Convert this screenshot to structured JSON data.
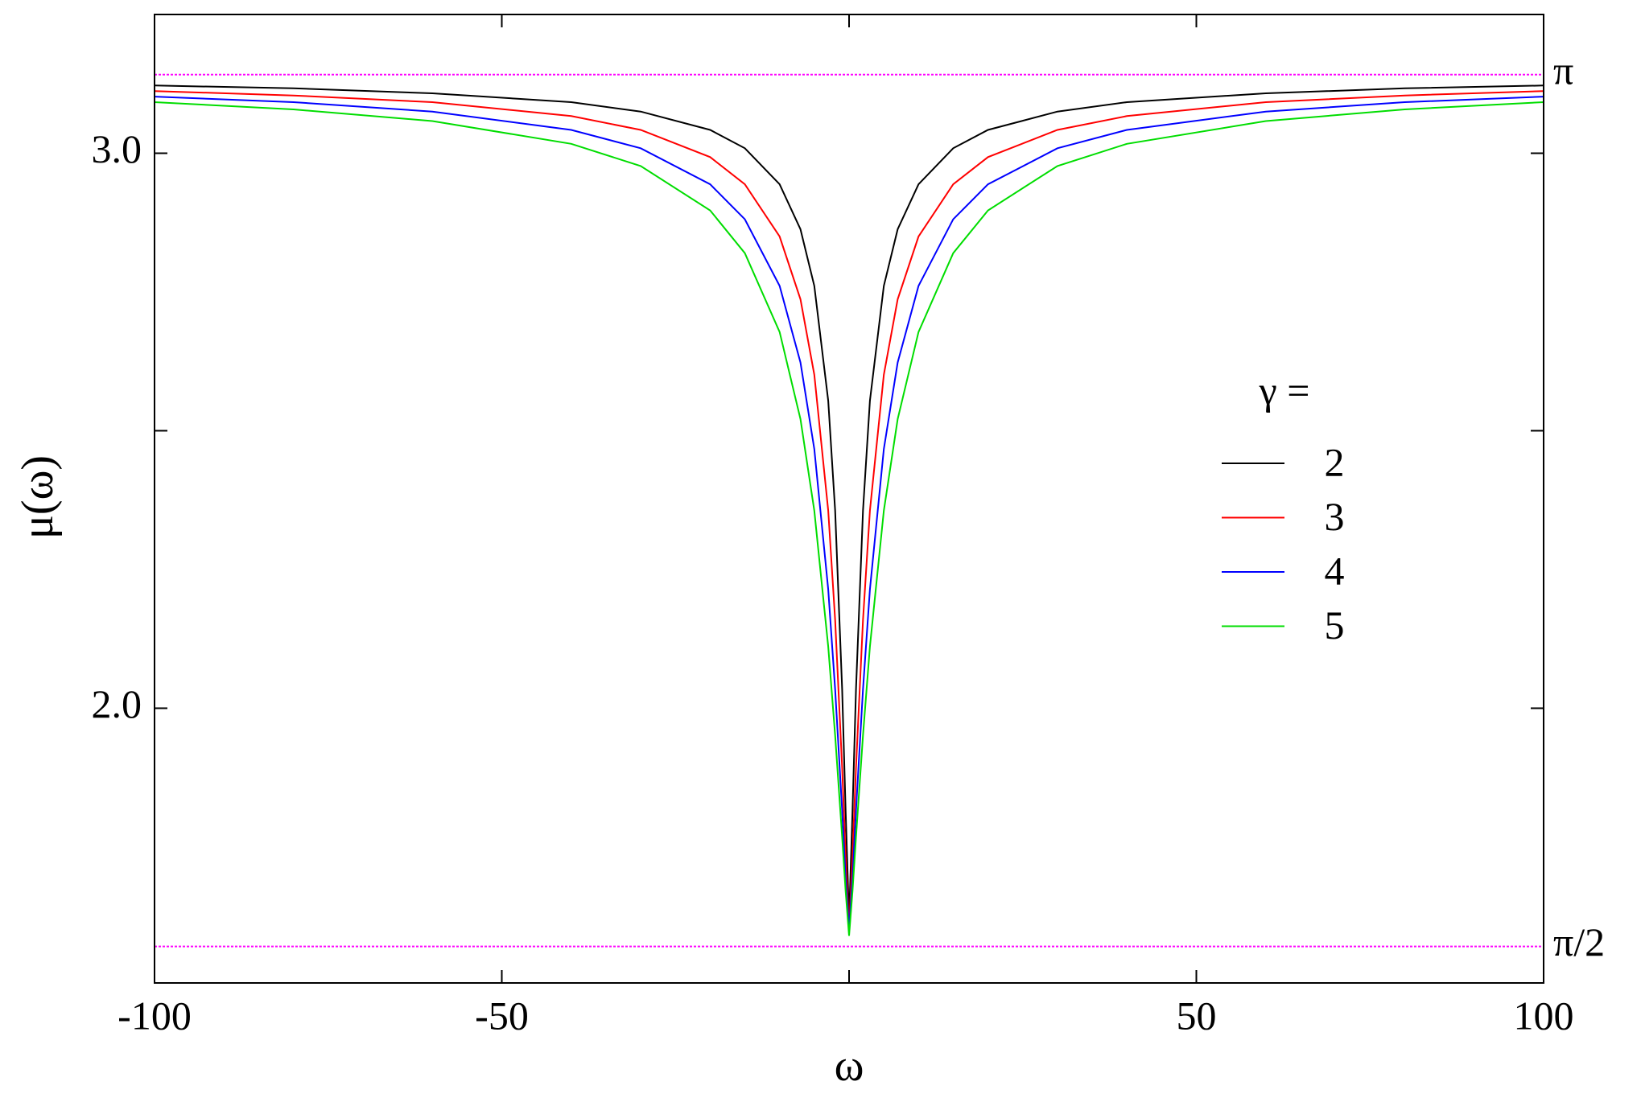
{
  "chart_data": {
    "type": "line",
    "x_label": "ω",
    "y_label": "μ(ω)",
    "x": [
      -100,
      -80,
      -60,
      -40,
      -30,
      -20,
      -15,
      -10,
      -7,
      -5,
      -3,
      -2,
      -1,
      -0.5,
      0,
      0.5,
      1,
      2,
      3,
      5,
      7,
      10,
      15,
      20,
      30,
      40,
      60,
      80,
      100
    ],
    "series": [
      {
        "name": "2",
        "color": "#000000",
        "values": [
          3.122,
          3.117,
          3.108,
          3.092,
          3.075,
          3.042,
          3.009,
          2.944,
          2.863,
          2.761,
          2.554,
          2.356,
          2.034,
          1.816,
          1.62,
          1.816,
          2.034,
          2.356,
          2.554,
          2.761,
          2.863,
          2.944,
          3.009,
          3.042,
          3.075,
          3.092,
          3.108,
          3.117,
          3.122
        ]
      },
      {
        "name": "3",
        "color": "#ff0000",
        "values": [
          3.112,
          3.104,
          3.092,
          3.067,
          3.042,
          2.993,
          2.944,
          2.85,
          2.737,
          2.601,
          2.356,
          2.159,
          1.893,
          1.736,
          1.6,
          1.736,
          1.893,
          2.159,
          2.356,
          2.601,
          2.737,
          2.85,
          2.944,
          2.993,
          3.042,
          3.067,
          3.092,
          3.104,
          3.112
        ]
      },
      {
        "name": "4",
        "color": "#0000ff",
        "values": [
          3.102,
          3.092,
          3.075,
          3.042,
          3.009,
          2.944,
          2.881,
          2.761,
          2.623,
          2.467,
          2.214,
          2.034,
          1.816,
          1.695,
          1.6,
          1.695,
          1.816,
          2.034,
          2.214,
          2.467,
          2.623,
          2.761,
          2.881,
          2.944,
          3.009,
          3.042,
          3.075,
          3.092,
          3.102
        ]
      },
      {
        "name": "5",
        "color": "#00dd00",
        "values": [
          3.092,
          3.079,
          3.058,
          3.017,
          2.977,
          2.897,
          2.82,
          2.678,
          2.521,
          2.356,
          2.111,
          1.951,
          1.768,
          1.671,
          1.59,
          1.671,
          1.768,
          1.951,
          2.111,
          2.356,
          2.521,
          2.678,
          2.82,
          2.897,
          2.977,
          3.017,
          3.058,
          3.079,
          3.092
        ]
      }
    ],
    "legend_title": "γ =",
    "xlim": [
      -100,
      100
    ],
    "xticks": [
      -100,
      -50,
      50,
      100
    ],
    "xminor_ticks": [
      0
    ],
    "ylim": [
      1.505,
      3.25
    ],
    "yticks": [
      {
        "value": 2,
        "label": "2.0"
      },
      {
        "value": 3,
        "label": "3.0"
      }
    ],
    "yminor_ticks": [
      2.5
    ],
    "reference_lines": [
      {
        "value": 3.14159,
        "label": "π",
        "color": "#ff00ff"
      },
      {
        "value": 1.5708,
        "label": "π/2",
        "color": "#ff00ff"
      }
    ],
    "grid": false
  }
}
